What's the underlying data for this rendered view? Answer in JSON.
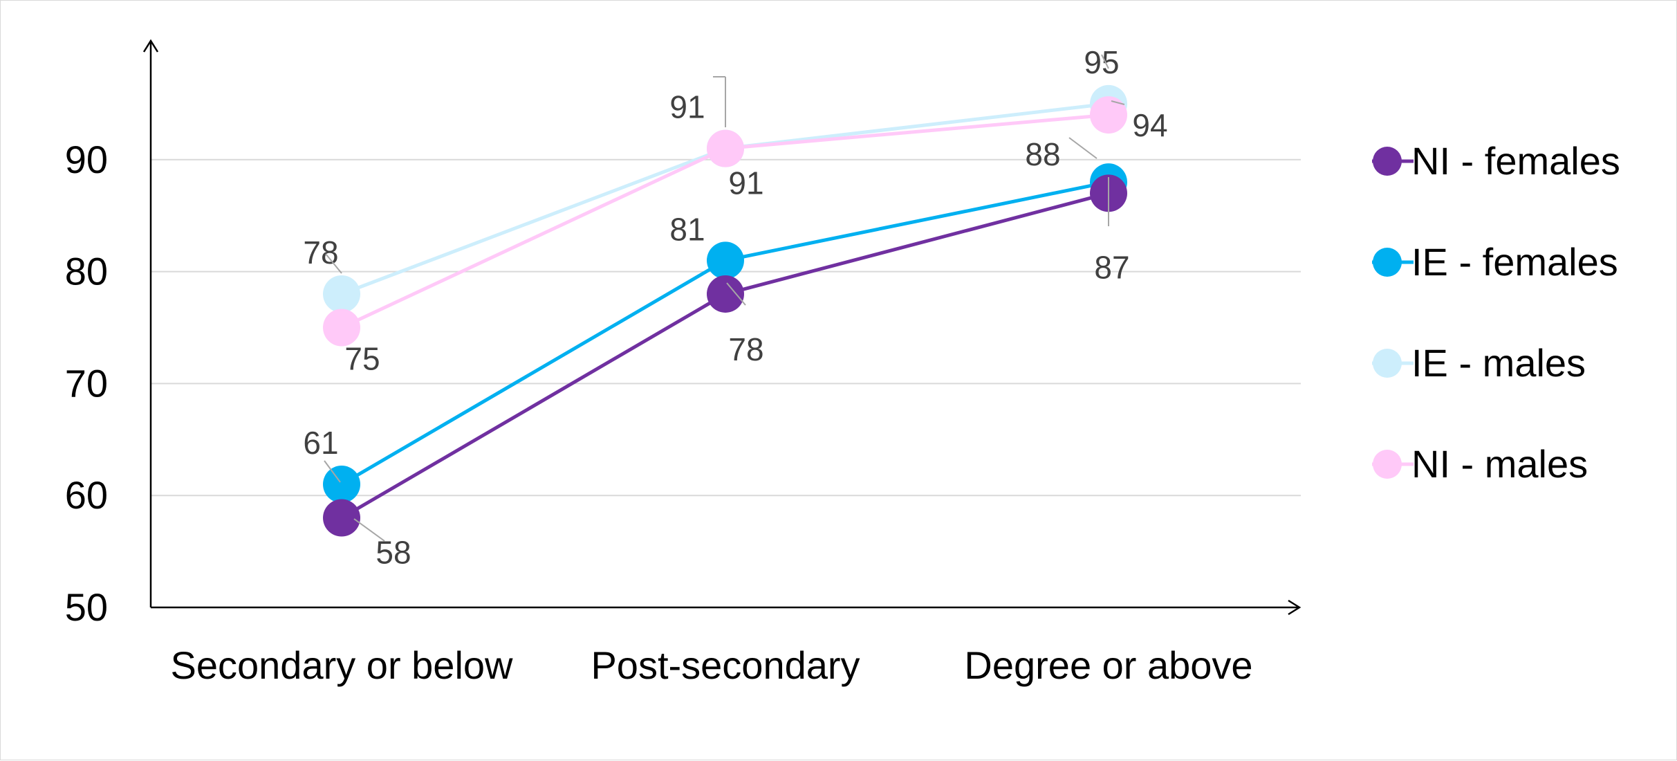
{
  "chart_data": {
    "type": "line",
    "categories": [
      "Secondary or below",
      "Post-secondary",
      "Degree or above"
    ],
    "ylim": [
      50,
      100
    ],
    "yticks": [
      50,
      60,
      70,
      80,
      90
    ],
    "grid": true,
    "legend_position": "right",
    "series": [
      {
        "name": "NI - females",
        "color": "#7030a0",
        "values": [
          58,
          78,
          87
        ],
        "labels": [
          "58",
          "78",
          "87"
        ]
      },
      {
        "name": "IE - females",
        "color": "#00b0f0",
        "values": [
          61,
          81,
          88
        ],
        "labels": [
          "61",
          "81",
          "88"
        ]
      },
      {
        "name": "IE - males",
        "color": "#cdeefc",
        "values": [
          78,
          91,
          95
        ],
        "labels": [
          "78",
          "91",
          "95"
        ]
      },
      {
        "name": "NI - males",
        "color": "#ffc9f8",
        "values": [
          75,
          91,
          94
        ],
        "labels": [
          "75",
          "91",
          "94"
        ]
      }
    ]
  }
}
